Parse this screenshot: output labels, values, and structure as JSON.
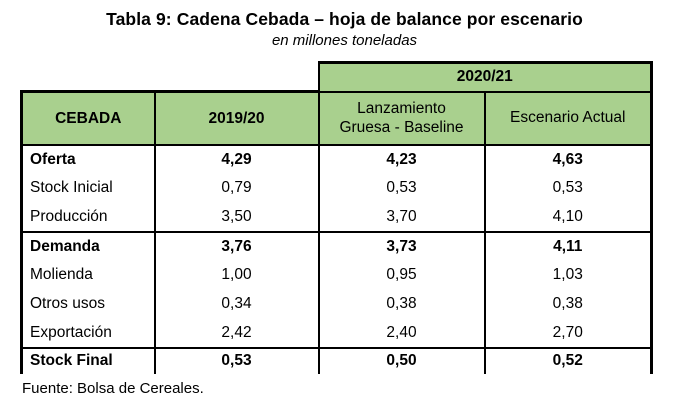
{
  "title": "Tabla 9: Cadena Cebada – hoja de balance por escenario",
  "subtitle": "en millones toneladas",
  "colors": {
    "header_green": "#a9d08e",
    "border": "#000000"
  },
  "table": {
    "group_header": "2020/21",
    "header_cebada": "CEBADA",
    "header_2019_20": "2019/20",
    "header_baseline_line1": "Lanzamiento",
    "header_baseline_line2": "Gruesa - Baseline",
    "header_actual": "Escenario Actual",
    "rows": [
      {
        "label": "Oferta",
        "y2019_20": "4,29",
        "baseline": "4,23",
        "actual": "4,63"
      },
      {
        "label": "Stock Inicial",
        "y2019_20": "0,79",
        "baseline": "0,53",
        "actual": "0,53"
      },
      {
        "label": "Producción",
        "y2019_20": "3,50",
        "baseline": "3,70",
        "actual": "4,10"
      },
      {
        "label": "Demanda",
        "y2019_20": "3,76",
        "baseline": "3,73",
        "actual": "4,11"
      },
      {
        "label": "Molienda",
        "y2019_20": "1,00",
        "baseline": "0,95",
        "actual": "1,03"
      },
      {
        "label": "Otros usos",
        "y2019_20": "0,34",
        "baseline": "0,38",
        "actual": "0,38"
      },
      {
        "label": "Exportación",
        "y2019_20": "2,42",
        "baseline": "2,40",
        "actual": "2,70"
      },
      {
        "label": "Stock Final",
        "y2019_20": "0,53",
        "baseline": "0,50",
        "actual": "0,52"
      }
    ]
  },
  "source": "Fuente: Bolsa de Cereales."
}
